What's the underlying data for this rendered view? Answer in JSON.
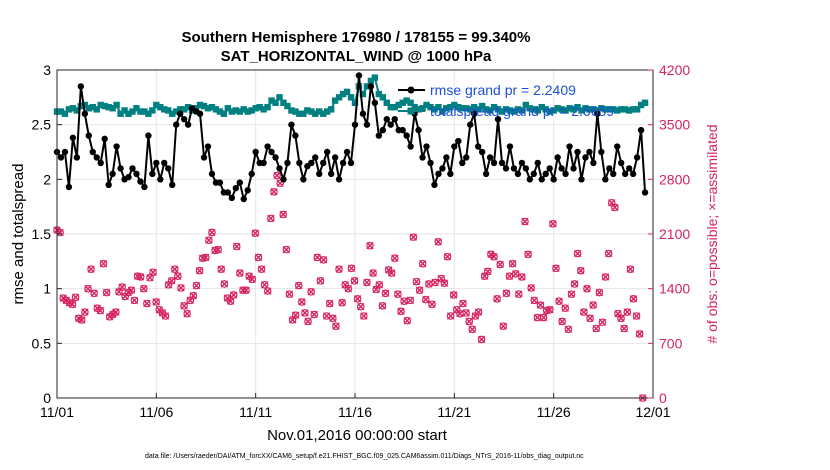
{
  "chart_data": {
    "type": "line",
    "title": "Southern Hemisphere 176980 / 178155 = 99.340%",
    "subtitle": "SAT_HORIZONTAL_WIND @ 1000 hPa",
    "xlabel": "Nov.01,2016 00:00:00 start",
    "ylabel": "rmse and totalspread",
    "y2label": "# of obs: o=possible; ×=assimilated",
    "x_ticks": [
      "11/01",
      "11/06",
      "11/11",
      "11/16",
      "11/21",
      "11/26",
      "12/01"
    ],
    "x_tick_days": [
      0,
      5,
      10,
      15,
      20,
      25,
      30
    ],
    "xlim": [
      0,
      30
    ],
    "ylim": [
      0,
      3
    ],
    "y_ticks": [
      "0",
      "0.5",
      "1",
      "1.5",
      "2",
      "2.5",
      "3"
    ],
    "y2lim": [
      0,
      4200
    ],
    "y2_ticks": [
      "0",
      "700",
      "1400",
      "2100",
      "2800",
      "3500",
      "4200"
    ],
    "grid": true,
    "legend": "top-right",
    "footer": "data file: /Users/raeder/DAI/ATM_forcXX/CAM6_setup/f.e21.FHIST_BGC.f09_025.CAM6assim.011/Diags_NTrS_2016-11/obs_diag_output.nc",
    "colors": {
      "rmse": "#000000",
      "spread": "#008080",
      "obs": "#d6245f",
      "legend_text": "#1a4fd6"
    },
    "series": [
      {
        "name": "rmse grand pr = 2.2409",
        "axis": "left",
        "values": [
          2.25,
          2.2,
          2.25,
          1.93,
          2.38,
          2.2,
          2.85,
          2.6,
          2.4,
          2.25,
          2.2,
          2.15,
          2.37,
          1.95,
          2.05,
          2.3,
          2.1,
          2.0,
          2.02,
          2.1,
          2.05,
          1.98,
          1.93,
          2.4,
          2.05,
          2.15,
          2.0,
          2.15,
          2.1,
          1.95,
          2.5,
          2.6,
          2.55,
          2.5,
          2.65,
          2.62,
          2.6,
          2.2,
          2.3,
          2.05,
          1.97,
          1.97,
          1.88,
          1.88,
          1.83,
          1.92,
          1.97,
          1.82,
          1.9,
          2.05,
          2.25,
          2.15,
          2.15,
          2.3,
          2.25,
          2.2,
          2.1,
          2.0,
          2.15,
          2.5,
          2.4,
          2.15,
          2.0,
          2.12,
          2.15,
          2.2,
          2.05,
          2.15,
          2.25,
          2.05,
          2.2,
          2.0,
          2.15,
          2.25,
          2.15,
          2.5,
          2.95,
          2.6,
          2.5,
          2.85,
          2.7,
          2.4,
          2.45,
          2.55,
          2.5,
          2.55,
          2.45,
          2.45,
          2.4,
          2.3,
          2.6,
          2.45,
          2.2,
          2.3,
          2.15,
          1.95,
          2.05,
          2.1,
          2.2,
          2.05,
          2.3,
          2.35,
          2.15,
          2.2,
          2.5,
          2.6,
          2.3,
          2.25,
          2.05,
          2.2,
          2.15,
          2.55,
          2.15,
          2.1,
          2.3,
          2.1,
          2.05,
          2.15,
          2.1,
          2.0,
          2.05,
          2.15,
          2.0,
          2.05,
          2.1,
          2.0,
          2.2,
          2.1,
          2.05,
          2.3,
          2.1,
          2.25,
          2.0,
          2.2,
          2.25,
          2.15,
          2.6,
          2.25,
          2.0,
          2.1,
          2.05,
          2.3,
          2.15,
          2.05,
          2.1,
          2.05,
          2.2,
          2.45,
          1.88
        ],
        "x_start": 0.0,
        "x_step": 0.2
      },
      {
        "name": "totalspread grand pr = 2.6659",
        "axis": "left",
        "values": [
          2.62,
          2.62,
          2.6,
          2.64,
          2.65,
          2.63,
          2.67,
          2.68,
          2.65,
          2.66,
          2.64,
          2.68,
          2.67,
          2.66,
          2.65,
          2.68,
          2.6,
          2.63,
          2.6,
          2.62,
          2.65,
          2.62,
          2.62,
          2.6,
          2.63,
          2.68,
          2.66,
          2.64,
          2.63,
          2.6,
          2.62,
          2.64,
          2.64,
          2.66,
          2.63,
          2.65,
          2.68,
          2.67,
          2.65,
          2.66,
          2.64,
          2.62,
          2.6,
          2.65,
          2.62,
          2.63,
          2.62,
          2.64,
          2.62,
          2.63,
          2.65,
          2.66,
          2.64,
          2.66,
          2.72,
          2.7,
          2.75,
          2.7,
          2.67,
          2.63,
          2.62,
          2.6,
          2.6,
          2.63,
          2.62,
          2.6,
          2.62,
          2.6,
          2.62,
          2.64,
          2.72,
          2.75,
          2.78,
          2.8,
          2.75,
          2.7,
          2.85,
          2.78,
          2.85,
          2.9,
          2.93,
          2.78,
          2.75,
          2.7,
          2.66,
          2.66,
          2.68,
          2.7,
          2.72,
          2.7,
          2.66,
          2.64,
          2.65,
          2.68,
          2.66,
          2.64,
          2.66,
          2.62,
          2.65,
          2.66,
          2.68,
          2.66,
          2.65,
          2.65,
          2.64,
          2.66,
          2.64,
          2.67,
          2.64,
          2.63,
          2.66,
          2.64,
          2.62,
          2.64,
          2.63,
          2.62,
          2.64,
          2.63,
          2.68,
          2.65,
          2.64,
          2.63,
          2.66,
          2.64,
          2.62,
          2.63,
          2.65,
          2.64,
          2.63,
          2.65,
          2.64,
          2.66,
          2.63,
          2.65,
          2.64,
          2.64,
          2.63,
          2.65,
          2.64,
          2.64,
          2.64,
          2.63,
          2.64,
          2.64,
          2.63,
          2.64,
          2.64,
          2.68,
          2.7
        ],
        "x_start": 0.0,
        "x_step": 0.2
      },
      {
        "name": "obs possible",
        "axis": "right",
        "values": [
          2150,
          2120,
          1280,
          1250,
          1220,
          1200,
          1290,
          1020,
          1000,
          1100,
          1400,
          1650,
          1340,
          1150,
          1120,
          1720,
          1350,
          1040,
          1070,
          1100,
          1360,
          1420,
          1300,
          1350,
          1380,
          1250,
          1560,
          1550,
          1400,
          1210,
          1540,
          1610,
          1230,
          1130,
          1090,
          1050,
          1450,
          1500,
          1650,
          1560,
          1410,
          1180,
          1080,
          1250,
          1310,
          1440,
          1630,
          1790,
          1800,
          2020,
          2120,
          1890,
          1900,
          1650,
          1460,
          1280,
          1240,
          1320,
          1940,
          1600,
          1380,
          1380,
          1560,
          1520,
          2110,
          1800,
          1650,
          1450,
          1370,
          2300,
          2640,
          2850,
          2750,
          2350,
          1900,
          1330,
          1000,
          1060,
          1440,
          1230,
          1090,
          980,
          1360,
          1070,
          1800,
          1500,
          1770,
          1050,
          1210,
          1020,
          920,
          1650,
          1220,
          1450,
          1400,
          1660,
          1500,
          1270,
          1170,
          1050,
          1480,
          1950,
          1600,
          1390,
          1450,
          1180,
          1340,
          1640,
          1600,
          1790,
          1330,
          1110,
          1240,
          990,
          1250,
          2060,
          1490,
          1380,
          1720,
          1260,
          1460,
          1200,
          1480,
          2000,
          1530,
          1470,
          1810,
          1050,
          1320,
          1130,
          1080,
          1210,
          1090,
          980,
          880,
          1050,
          1100,
          750,
          1560,
          1620,
          1840,
          1810,
          1270,
          1710,
          920,
          1340,
          1560,
          1720,
          1590,
          1330,
          1550,
          2260,
          1840,
          1410,
          1250,
          1030,
          1190,
          1030,
          1120,
          1130,
          2230,
          1660,
          1240,
          980,
          1150,
          880,
          1330,
          1460,
          1850,
          1630,
          1100,
          1400,
          1020,
          1190,
          890,
          1350,
          970,
          1550,
          1850,
          2500,
          2440,
          1080,
          1020,
          890,
          1100,
          1650,
          1270,
          1050,
          820,
          0
        ],
        "x_start": 0.0,
        "x_step": 0.156
      }
    ]
  }
}
